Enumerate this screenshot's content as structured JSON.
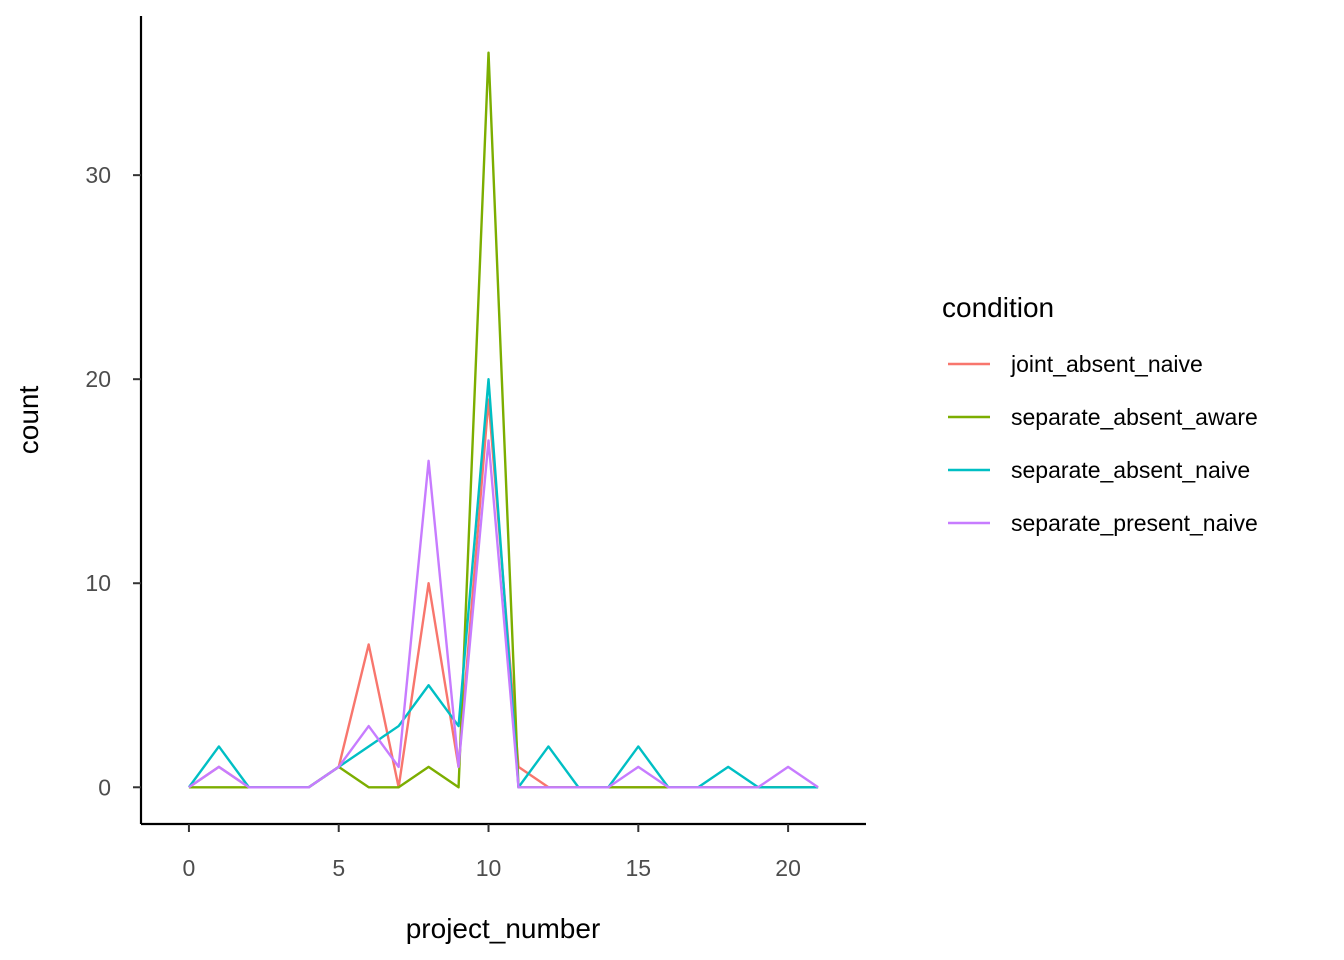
{
  "chart_data": {
    "type": "line",
    "xlabel": "project_number",
    "ylabel": "count",
    "xlim": [
      -1.6,
      22.6
    ],
    "ylim": [
      -1.8,
      37.8
    ],
    "x_ticks": [
      0,
      5,
      10,
      15,
      20
    ],
    "y_ticks": [
      0,
      10,
      20,
      30
    ],
    "x_tick_labels": [
      "0",
      "5",
      "10",
      "15",
      "20"
    ],
    "y_tick_labels": [
      "0",
      "10",
      "20",
      "30"
    ],
    "legend": {
      "title": "condition",
      "position": "right"
    },
    "x": [
      0,
      1,
      2,
      3,
      4,
      5,
      6,
      7,
      8,
      9,
      10,
      11,
      12,
      13,
      14,
      15,
      16,
      17,
      18,
      19,
      20,
      21
    ],
    "series": [
      {
        "name": "joint_absent_naive",
        "color": "#F8766D",
        "values": [
          0,
          1,
          0,
          0,
          0,
          1,
          7,
          0,
          10,
          1,
          19,
          1,
          0,
          0,
          0,
          0,
          0,
          0,
          0,
          0,
          0,
          0
        ]
      },
      {
        "name": "separate_absent_aware",
        "color": "#7CAE00",
        "values": [
          0,
          0,
          0,
          0,
          0,
          1,
          0,
          0,
          1,
          0,
          36,
          0,
          0,
          0,
          0,
          0,
          0,
          0,
          0,
          0,
          0,
          0
        ]
      },
      {
        "name": "separate_absent_naive",
        "color": "#00BFC4",
        "values": [
          0,
          2,
          0,
          0,
          0,
          1,
          2,
          3,
          5,
          3,
          20,
          0,
          2,
          0,
          0,
          2,
          0,
          0,
          1,
          0,
          0,
          0
        ]
      },
      {
        "name": "separate_present_naive",
        "color": "#C77CFF",
        "values": [
          0,
          1,
          0,
          0,
          0,
          1,
          3,
          1,
          16,
          1,
          17,
          0,
          0,
          0,
          0,
          1,
          0,
          0,
          0,
          0,
          1,
          0
        ]
      }
    ]
  }
}
